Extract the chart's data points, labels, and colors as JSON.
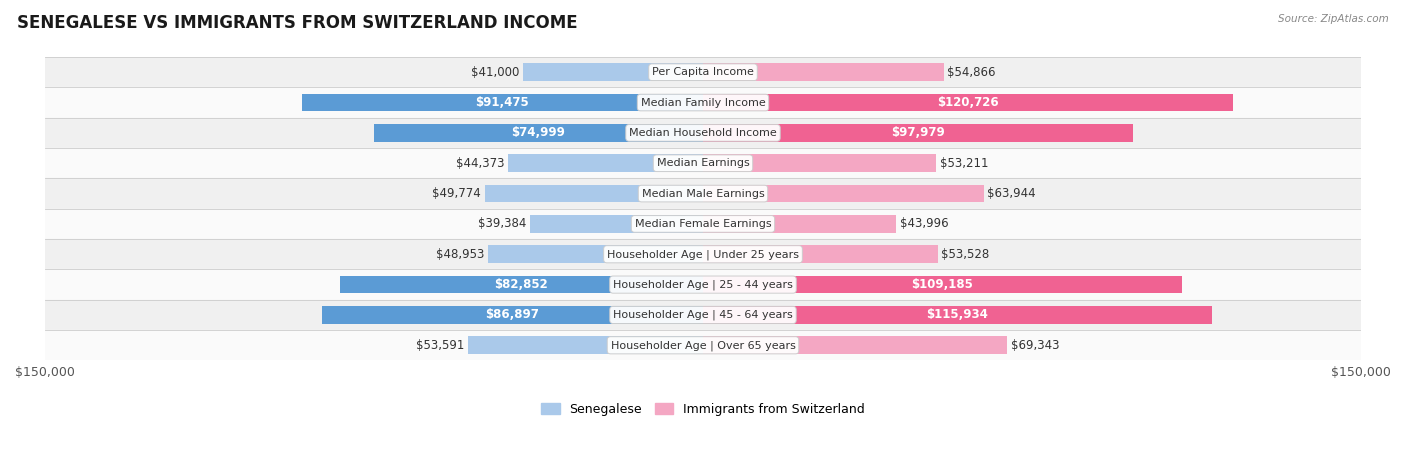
{
  "title": "SENEGALESE VS IMMIGRANTS FROM SWITZERLAND INCOME",
  "source": "Source: ZipAtlas.com",
  "categories": [
    "Per Capita Income",
    "Median Family Income",
    "Median Household Income",
    "Median Earnings",
    "Median Male Earnings",
    "Median Female Earnings",
    "Householder Age | Under 25 years",
    "Householder Age | 25 - 44 years",
    "Householder Age | 45 - 64 years",
    "Householder Age | Over 65 years"
  ],
  "senegalese_values": [
    41000,
    91475,
    74999,
    44373,
    49774,
    39384,
    48953,
    82852,
    86897,
    53591
  ],
  "swiss_values": [
    54866,
    120726,
    97979,
    53211,
    63944,
    43996,
    53528,
    109185,
    115934,
    69343
  ],
  "senegalese_color_light": "#aac9ea",
  "senegalese_color_dark": "#5b9bd5",
  "swiss_color_light": "#f4a7c3",
  "swiss_color_dark": "#f06292",
  "max_value": 150000,
  "row_color_even": "#f0f0f0",
  "row_color_odd": "#fafafa",
  "label_font_size": 8.5,
  "title_font_size": 12,
  "axis_label_font_size": 9,
  "legend_font_size": 9,
  "bar_height": 0.58,
  "fig_width": 14.06,
  "fig_height": 4.67,
  "dark_indices": [
    1,
    2,
    7,
    8
  ],
  "legend_label_sen": "Senegalese",
  "legend_label_swi": "Immigrants from Switzerland"
}
